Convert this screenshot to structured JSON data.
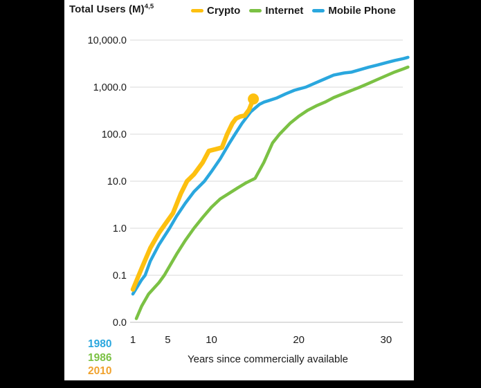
{
  "page": {
    "title": "Total Users (M)",
    "title_superscript": "4,5"
  },
  "legend": {
    "items": [
      {
        "label": "Crypto",
        "color": "#FDC010"
      },
      {
        "label": "Internet",
        "color": "#7BC144"
      },
      {
        "label": "Mobile Phone",
        "color": "#2AA7DE"
      }
    ]
  },
  "axis_annotations": {
    "launch_years": [
      {
        "text": "1980",
        "color": "#2AA7DE"
      },
      {
        "text": "1986",
        "color": "#7BC144"
      },
      {
        "text": "2010",
        "color": "#F0A22E"
      }
    ]
  },
  "chart_data": {
    "type": "line",
    "title": "Total Users (M)",
    "xlabel": "Years since commercially available",
    "ylabel": "Total Users (M)",
    "x_scale": "linear",
    "y_scale": "log",
    "xlim": [
      1,
      32.5
    ],
    "ylim": [
      0.01,
      10000
    ],
    "x_ticks": [
      1,
      5,
      10,
      20,
      30
    ],
    "y_tick_labels": [
      "10,000.0",
      "1,000.0",
      "100.0",
      "10.0",
      "1.0",
      "0.1",
      "0.0"
    ],
    "y_tick_values": [
      10000,
      1000,
      100,
      10,
      1,
      0.1,
      0.01
    ],
    "grid": "horizontal",
    "legend_position": "top",
    "series": [
      {
        "name": "Internet",
        "color": "#7BC144",
        "commercially_available_year": "1986",
        "end_marker": false,
        "points": [
          [
            1.4,
            0.012
          ],
          [
            2,
            0.022
          ],
          [
            2.8,
            0.04
          ],
          [
            4,
            0.07
          ],
          [
            4.6,
            0.1
          ],
          [
            6,
            0.28
          ],
          [
            7,
            0.55
          ],
          [
            8,
            1.0
          ],
          [
            9,
            1.7
          ],
          [
            10,
            2.8
          ],
          [
            11,
            4.2
          ],
          [
            12,
            5.5
          ],
          [
            13,
            7.2
          ],
          [
            14,
            9.3
          ],
          [
            15,
            11.5
          ],
          [
            16,
            25
          ],
          [
            17,
            65
          ],
          [
            17.8,
            100
          ],
          [
            19,
            170
          ],
          [
            20,
            240
          ],
          [
            21,
            320
          ],
          [
            22,
            400
          ],
          [
            23,
            480
          ],
          [
            24,
            600
          ],
          [
            25.6,
            790
          ],
          [
            27,
            1000
          ],
          [
            28,
            1200
          ],
          [
            29,
            1450
          ],
          [
            30,
            1750
          ],
          [
            31,
            2100
          ],
          [
            32,
            2450
          ],
          [
            32.5,
            2670
          ]
        ]
      },
      {
        "name": "Mobile Phone",
        "color": "#2AA7DE",
        "commercially_available_year": "1980",
        "end_marker": false,
        "points": [
          [
            1,
            0.04
          ],
          [
            2,
            0.08
          ],
          [
            2.4,
            0.1
          ],
          [
            3,
            0.2
          ],
          [
            4,
            0.45
          ],
          [
            5.2,
            1.0
          ],
          [
            6,
            1.8
          ],
          [
            7,
            3.4
          ],
          [
            8,
            6
          ],
          [
            9.2,
            10
          ],
          [
            10,
            16
          ],
          [
            11,
            30
          ],
          [
            12,
            62
          ],
          [
            12.7,
            100
          ],
          [
            13.5,
            170
          ],
          [
            14.5,
            300
          ],
          [
            15.5,
            430
          ],
          [
            16,
            480
          ],
          [
            16.6,
            520
          ],
          [
            17.5,
            590
          ],
          [
            18.5,
            720
          ],
          [
            19.5,
            860
          ],
          [
            20.8,
            1000
          ],
          [
            22,
            1250
          ],
          [
            23,
            1500
          ],
          [
            24,
            1800
          ],
          [
            25.2,
            2000
          ],
          [
            26,
            2080
          ],
          [
            27,
            2350
          ],
          [
            28,
            2650
          ],
          [
            29,
            2950
          ],
          [
            30,
            3300
          ],
          [
            31,
            3700
          ],
          [
            32,
            4050
          ],
          [
            32.5,
            4300
          ]
        ]
      },
      {
        "name": "Crypto",
        "color": "#FDC010",
        "commercially_available_year": "2010",
        "end_marker": true,
        "points": [
          [
            1,
            0.05
          ],
          [
            2,
            0.14
          ],
          [
            3,
            0.38
          ],
          [
            4,
            0.8
          ],
          [
            4.8,
            1.3
          ],
          [
            5.6,
            2.1
          ],
          [
            6.5,
            5.5
          ],
          [
            7.2,
            10
          ],
          [
            8,
            14
          ],
          [
            9,
            25
          ],
          [
            9.7,
            44
          ],
          [
            10.5,
            48
          ],
          [
            11.2,
            52
          ],
          [
            11.8,
            100
          ],
          [
            12.4,
            170
          ],
          [
            12.8,
            215
          ],
          [
            13.3,
            238
          ],
          [
            13.8,
            248
          ],
          [
            14.3,
            330
          ],
          [
            14.8,
            560
          ]
        ]
      }
    ]
  }
}
